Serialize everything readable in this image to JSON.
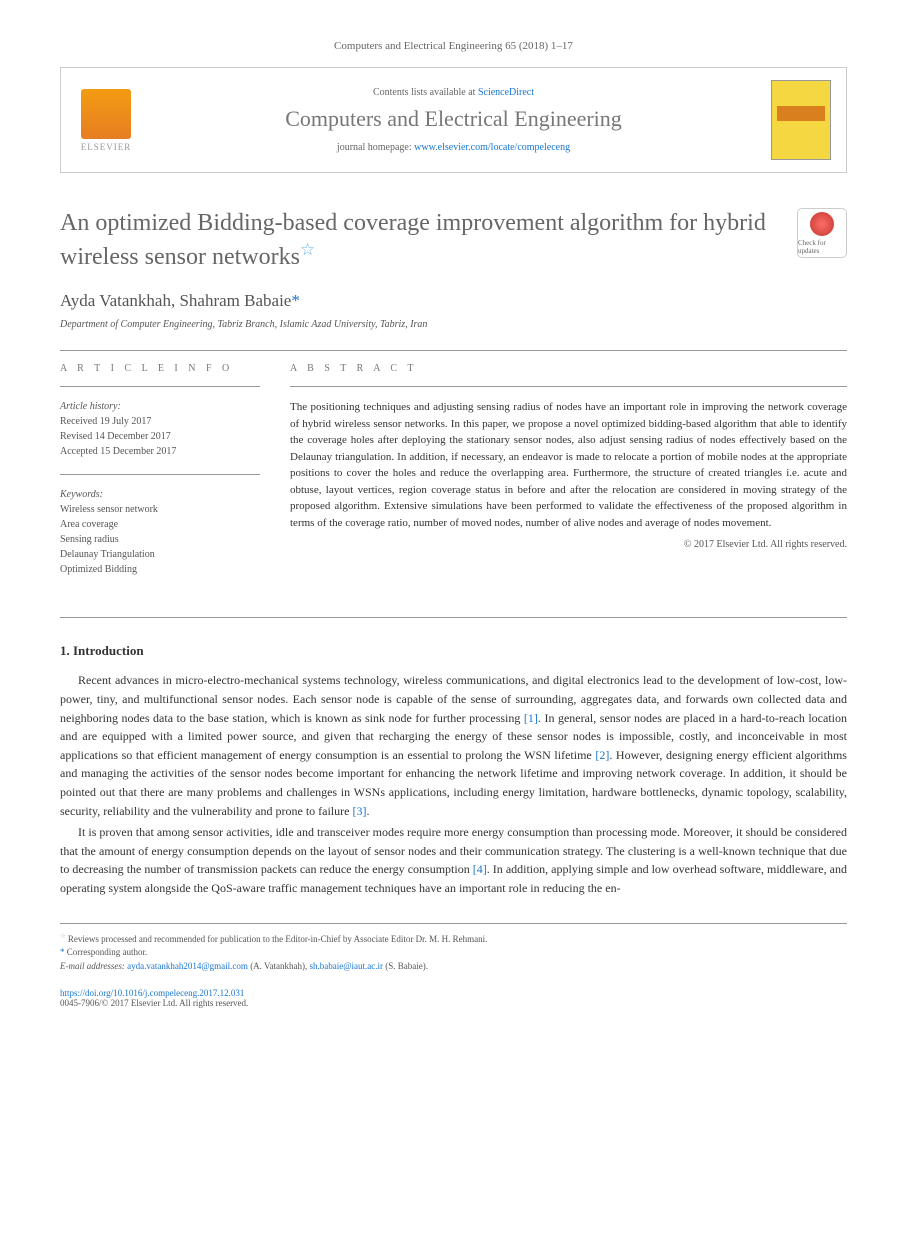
{
  "journal_ref": "Computers and Electrical Engineering 65 (2018) 1–17",
  "header": {
    "contents_prefix": "Contents lists available at ",
    "contents_link": "ScienceDirect",
    "journal_name": "Computers and Electrical Engineering",
    "homepage_prefix": "journal homepage: ",
    "homepage_url": "www.elsevier.com/locate/compeleceng",
    "elsevier_label": "ELSEVIER"
  },
  "check_updates_label": "Check for updates",
  "title": "An optimized Bidding-based coverage improvement algorithm for hybrid wireless sensor networks",
  "authors": "Ayda Vatankhah, Shahram Babaie",
  "author_mark": "*",
  "affiliation": "Department of Computer Engineering, Tabriz Branch, Islamic Azad University, Tabriz, Iran",
  "article_info": {
    "label": "A R T I C L E   I N F O",
    "history_label": "Article history:",
    "received": "Received 19 July 2017",
    "revised": "Revised 14 December 2017",
    "accepted": "Accepted 15 December 2017",
    "keywords_label": "Keywords:",
    "keywords": [
      "Wireless sensor network",
      "Area coverage",
      "Sensing radius",
      "Delaunay Triangulation",
      "Optimized Bidding"
    ]
  },
  "abstract": {
    "label": "A B S T R A C T",
    "text": "The positioning techniques and adjusting sensing radius of nodes have an important role in improving the network coverage of hybrid wireless sensor networks. In this paper, we propose a novel optimized bidding-based algorithm that able to identify the coverage holes after deploying the stationary sensor nodes, also adjust sensing radius of nodes effectively based on the Delaunay triangulation. In addition, if necessary, an endeavor is made to relocate a portion of mobile nodes at the appropriate positions to cover the holes and reduce the overlapping area. Furthermore, the structure of created triangles i.e. acute and obtuse, layout vertices, region coverage status in before and after the relocation are considered in moving strategy of the proposed algorithm. Extensive simulations have been performed to validate the effectiveness of the proposed algorithm in terms of the coverage ratio, number of moved nodes, number of alive nodes and average of nodes movement.",
    "copyright": "© 2017 Elsevier Ltd. All rights reserved."
  },
  "intro": {
    "heading": "1. Introduction",
    "p1_a": "Recent advances in micro-electro-mechanical systems technology, wireless communications, and digital electronics lead to the development of low-cost, low-power, tiny, and multifunctional sensor nodes. Each sensor node is capable of the sense of surrounding, aggregates data, and forwards own collected data and neighboring nodes data to the base station, which is known as sink node for further processing ",
    "ref1": "[1]",
    "p1_b": ". In general, sensor nodes are placed in a hard-to-reach location and are equipped with a limited power source, and given that recharging the energy of these sensor nodes is impossible, costly, and inconceivable in most applications so that efficient management of energy consumption is an essential to prolong the WSN lifetime ",
    "ref2": "[2]",
    "p1_c": ". However, designing energy efficient algorithms and managing the activities of the sensor nodes become important for enhancing the network lifetime and improving network coverage. In addition, it should be pointed out that there are many problems and challenges in WSNs applications, including energy limitation, hardware bottlenecks, dynamic topology, scalability, security, reliability and the vulnerability and prone to failure ",
    "ref3": "[3]",
    "p1_d": ".",
    "p2_a": "It is proven that among sensor activities, idle and transceiver modes require more energy consumption than processing mode. Moreover, it should be considered that the amount of energy consumption depends on the layout of sensor nodes and their communication strategy. The clustering is a well-known technique that due to decreasing the number of transmission packets can reduce the energy consumption ",
    "ref4": "[4]",
    "p2_b": ". In addition, applying simple and low overhead software, middleware, and operating system alongside the QoS-aware traffic management techniques have an important role in reducing the en-"
  },
  "footnotes": {
    "review_note": "Reviews processed and recommended for publication to the Editor-in-Chief by Associate Editor Dr. M. H. Rehmani.",
    "corresponding": "Corresponding author.",
    "email_label": "E-mail addresses: ",
    "email1": "ayda.vatankhah2014@gmail.com",
    "email1_name": " (A. Vatankhah), ",
    "email2": "sh.babaie@iaut.ac.ir",
    "email2_name": " (S. Babaie)."
  },
  "footer": {
    "doi": "https://doi.org/10.1016/j.compeleceng.2017.12.031",
    "issn_copyright": "0045-7906/© 2017 Elsevier Ltd. All rights reserved."
  }
}
